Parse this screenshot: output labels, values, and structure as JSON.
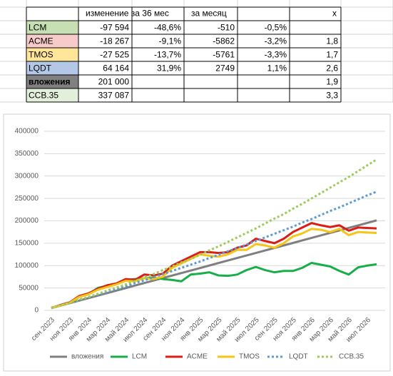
{
  "table": {
    "header": [
      null,
      "изменение за 36 мес",
      null,
      "за месяц",
      null,
      "х"
    ],
    "rows": [
      {
        "color": "#c6e0b4",
        "cells": [
          "LCM",
          "-97 594",
          "-48,6%",
          "-510",
          "-0,5%",
          null
        ]
      },
      {
        "color": "#f8cbcb",
        "cells": [
          "ACME",
          "-18 267",
          "-9,1%",
          "-5862",
          "-3,2%",
          "1,8"
        ]
      },
      {
        "color": "#ffe699",
        "cells": [
          "TMOS",
          "-27 525",
          "-13,7%",
          "-5761",
          "-3,3%",
          "1,7"
        ]
      },
      {
        "color": "#b4c7e7",
        "cells": [
          "LQDT",
          "64 164",
          "31,9%",
          "2749",
          "1,1%",
          "2,6"
        ]
      },
      {
        "color": "#808080",
        "cells": [
          "вложения",
          "201 000",
          null,
          null,
          null,
          "1,9"
        ]
      },
      {
        "color": "#e2efda",
        "cells": [
          "ССВ.35",
          "337 087",
          null,
          null,
          null,
          "3,3"
        ]
      }
    ]
  },
  "chart_data": {
    "type": "line",
    "categories": [
      "сен 2023",
      null,
      "ноя 2023",
      null,
      "янв 2024",
      null,
      "мар 2024",
      null,
      "май 2024",
      null,
      "июл 2024",
      null,
      "сен 2024",
      null,
      "ноя 2024",
      null,
      "янв 2025",
      null,
      "мар 2025",
      null,
      "май 2025",
      null,
      "июл 2025",
      null,
      "сен 2025",
      null,
      "ноя 2025",
      null,
      "янв 2026",
      null,
      "мар 2026",
      null,
      "май 2026",
      null,
      "июл 2026",
      null
    ],
    "ylim": [
      0,
      400000
    ],
    "yticks": [
      0,
      50000,
      100000,
      150000,
      200000,
      250000,
      300000,
      350000,
      400000
    ],
    "grid": true,
    "legend": "bottom",
    "series": [
      {
        "name": "вложения",
        "color": "#7f7f7f",
        "dash": "solid",
        "values": [
          5000,
          10600,
          16200,
          21800,
          27400,
          33000,
          38600,
          44200,
          49800,
          55400,
          61000,
          66600,
          72200,
          77800,
          83400,
          89000,
          94600,
          100200,
          105800,
          111400,
          117000,
          122600,
          128200,
          133800,
          139400,
          145000,
          150600,
          156200,
          161800,
          167400,
          173000,
          178600,
          184200,
          189800,
          195400,
          201000
        ]
      },
      {
        "name": "LCM",
        "color": "#1aae4a",
        "dash": "solid",
        "values": [
          5000,
          12000,
          18000,
          30000,
          36000,
          50000,
          55000,
          60000,
          68000,
          70000,
          72000,
          73000,
          70000,
          68000,
          65000,
          80000,
          82000,
          85000,
          78000,
          77000,
          80000,
          90000,
          97000,
          90000,
          85000,
          88000,
          88000,
          95000,
          106000,
          102000,
          98000,
          88000,
          80000,
          96000,
          100000,
          103000
        ]
      },
      {
        "name": "ACME",
        "color": "#d91e18",
        "dash": "solid",
        "values": [
          5000,
          12000,
          18000,
          32000,
          38000,
          48000,
          56000,
          60000,
          70000,
          68000,
          80000,
          78000,
          82000,
          100000,
          110000,
          120000,
          130000,
          130000,
          128000,
          130000,
          140000,
          145000,
          160000,
          155000,
          150000,
          160000,
          175000,
          185000,
          195000,
          190000,
          186000,
          190000,
          178000,
          185000,
          184000,
          183000
        ]
      },
      {
        "name": "TMOS",
        "color": "#f5c518",
        "dash": "solid",
        "values": [
          5000,
          11000,
          17000,
          30000,
          36000,
          46000,
          52000,
          58000,
          66000,
          65000,
          72000,
          70000,
          75000,
          95000,
          105000,
          115000,
          125000,
          122000,
          120000,
          125000,
          135000,
          135000,
          148000,
          145000,
          140000,
          150000,
          165000,
          172000,
          182000,
          180000,
          175000,
          182000,
          168000,
          175000,
          174000,
          173000
        ]
      },
      {
        "name": "LQDT",
        "color": "#5b9bd5",
        "dash": "dotted",
        "values": [
          6000,
          11000,
          17000,
          23000,
          29000,
          35000,
          41000,
          48000,
          54000,
          61000,
          67000,
          74000,
          81000,
          88000,
          95000,
          102000,
          109000,
          117000,
          124000,
          132000,
          139000,
          147000,
          155000,
          163000,
          171000,
          179000,
          187000,
          196000,
          204000,
          213000,
          222000,
          230000,
          239000,
          248000,
          257000,
          265000
        ]
      },
      {
        "name": "ССВ.35",
        "color": "#9bcb5a",
        "dash": "dotted",
        "values": [
          6000,
          11000,
          17000,
          24000,
          30000,
          37000,
          44000,
          51000,
          58000,
          66000,
          73000,
          81000,
          90000,
          98000,
          107000,
          115000,
          124000,
          134000,
          143000,
          153000,
          163000,
          173000,
          183000,
          194000,
          205000,
          215000,
          227000,
          238000,
          250000,
          262000,
          274000,
          286000,
          298000,
          311000,
          324000,
          337000
        ]
      }
    ]
  }
}
